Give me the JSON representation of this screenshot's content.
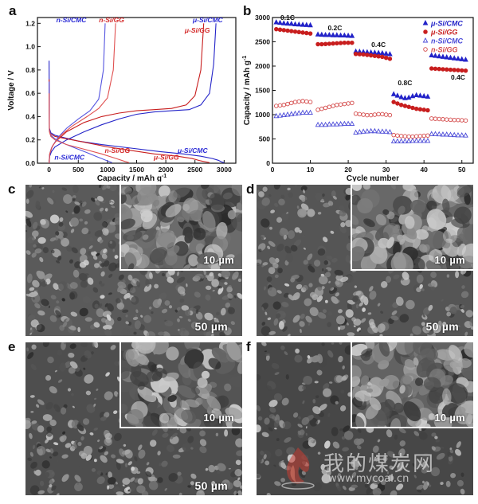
{
  "panels": {
    "a": "a",
    "b": "b",
    "c": "c",
    "d": "d",
    "e": "e",
    "f": "f"
  },
  "chart_data": [
    {
      "type": "line",
      "panel": "a",
      "xlabel": "Capacity / mAh g",
      "xlabel_sup": "-1",
      "ylabel": "Voltage / V",
      "xlim": [
        -200,
        3200
      ],
      "ylim": [
        0,
        1.25
      ],
      "xticks": [
        0,
        500,
        1000,
        1500,
        2000,
        2500,
        3000
      ],
      "yticks": [
        0.0,
        0.2,
        0.4,
        0.6,
        0.8,
        1.0,
        1.2
      ],
      "ytick_labels": [
        "0.0",
        "0.2",
        "0.4",
        "0.6",
        "0.8",
        "1.0",
        "1.2"
      ],
      "annotations": [
        {
          "text": "n-Si/CMC",
          "color": "#2b2bd6",
          "at": [
            380,
            1.23
          ]
        },
        {
          "text": "n-Si/GG",
          "color": "#d42a2a",
          "at": [
            1070,
            1.23
          ]
        },
        {
          "text": "μ-Si/CMC",
          "color": "#2b2bd6",
          "at": [
            2720,
            1.23
          ]
        },
        {
          "text": "μ-Si/GG",
          "color": "#d42a2a",
          "at": [
            2540,
            1.14
          ]
        },
        {
          "text": "n-Si/GG",
          "color": "#d42a2a",
          "at": [
            1170,
            0.11
          ]
        },
        {
          "text": "n-Si/CMC",
          "color": "#2b2bd6",
          "at": [
            350,
            0.05
          ]
        },
        {
          "text": "μ-Si/GG",
          "color": "#d42a2a",
          "at": [
            2010,
            0.05
          ]
        },
        {
          "text": "μ-Si/CMC",
          "color": "#2b2bd6",
          "at": [
            2460,
            0.11
          ]
        }
      ],
      "series": [
        {
          "name": "μ-Si/CMC discharge",
          "color": "#2323c8",
          "x": [
            0,
            5,
            30,
            100,
            250,
            500,
            900,
            1400,
            1900,
            2300,
            2600,
            2800,
            2900,
            2960,
            3000
          ],
          "y": [
            0.88,
            0.3,
            0.26,
            0.24,
            0.22,
            0.19,
            0.16,
            0.13,
            0.1,
            0.08,
            0.06,
            0.04,
            0.025,
            0.01,
            0.005
          ]
        },
        {
          "name": "μ-Si/CMC charge",
          "color": "#2323c8",
          "x": [
            0,
            10,
            40,
            100,
            300,
            600,
            900,
            1200,
            1500,
            1800,
            2100,
            2400,
            2600,
            2750,
            2820,
            2860
          ],
          "y": [
            0.0,
            0.06,
            0.1,
            0.14,
            0.2,
            0.27,
            0.33,
            0.38,
            0.42,
            0.44,
            0.45,
            0.46,
            0.5,
            0.6,
            0.85,
            1.2
          ]
        },
        {
          "name": "μ-Si/GG discharge",
          "color": "#c81e1e",
          "x": [
            0,
            5,
            30,
            100,
            300,
            600,
            1000,
            1400,
            1800,
            2200,
            2450,
            2600,
            2700,
            2750
          ],
          "y": [
            0.72,
            0.28,
            0.25,
            0.23,
            0.21,
            0.18,
            0.14,
            0.11,
            0.08,
            0.06,
            0.04,
            0.02,
            0.01,
            0.005
          ]
        },
        {
          "name": "μ-Si/GG charge",
          "color": "#c81e1e",
          "x": [
            0,
            10,
            40,
            100,
            300,
            600,
            900,
            1200,
            1500,
            1800,
            2100,
            2350,
            2500,
            2600,
            2650
          ],
          "y": [
            0.0,
            0.08,
            0.13,
            0.18,
            0.27,
            0.35,
            0.4,
            0.43,
            0.45,
            0.46,
            0.47,
            0.5,
            0.58,
            0.8,
            1.2
          ]
        },
        {
          "name": "n-Si/CMC discharge",
          "color": "#5555e0",
          "x": [
            0,
            5,
            30,
            100,
            250,
            450,
            650,
            850,
            1000,
            1080
          ],
          "y": [
            0.7,
            0.28,
            0.24,
            0.21,
            0.17,
            0.13,
            0.09,
            0.05,
            0.02,
            0.005
          ]
        },
        {
          "name": "n-Si/CMC charge",
          "color": "#5555e0",
          "x": [
            0,
            10,
            50,
            150,
            300,
            500,
            700,
            850,
            930,
            960
          ],
          "y": [
            0.0,
            0.08,
            0.14,
            0.22,
            0.3,
            0.38,
            0.45,
            0.55,
            0.8,
            1.2
          ]
        },
        {
          "name": "n-Si/GG discharge",
          "color": "#e05050",
          "x": [
            0,
            5,
            30,
            100,
            300,
            600,
            900,
            1150,
            1300,
            1370
          ],
          "y": [
            0.6,
            0.27,
            0.23,
            0.2,
            0.16,
            0.12,
            0.08,
            0.04,
            0.015,
            0.005
          ]
        },
        {
          "name": "n-Si/GG charge",
          "color": "#e05050",
          "x": [
            0,
            10,
            60,
            200,
            400,
            650,
            850,
            1000,
            1100,
            1140
          ],
          "y": [
            0.0,
            0.08,
            0.15,
            0.24,
            0.32,
            0.4,
            0.47,
            0.56,
            0.8,
            1.2
          ]
        }
      ]
    },
    {
      "type": "scatter",
      "panel": "b",
      "xlabel": "Cycle number",
      "ylabel": "Capacity / mAh g",
      "ylabel_sup": "-1",
      "xlim": [
        0,
        53
      ],
      "ylim": [
        0,
        3000
      ],
      "xticks": [
        0,
        10,
        20,
        30,
        40,
        50
      ],
      "yticks": [
        0,
        500,
        1000,
        1500,
        2000,
        2500,
        3000
      ],
      "annotations": [
        {
          "text": "0.1C",
          "at": [
            4,
            2950
          ]
        },
        {
          "text": "0.2C",
          "at": [
            16.5,
            2740
          ]
        },
        {
          "text": "0.4C",
          "at": [
            28,
            2390
          ]
        },
        {
          "text": "0.8C",
          "at": [
            35,
            1610
          ]
        },
        {
          "text": "0.4C",
          "at": [
            49,
            1720
          ]
        }
      ],
      "legend_position": "top-right",
      "series": [
        {
          "name": "μ-Si/CMC",
          "marker": "triangle-filled",
          "color": "#2323c8",
          "x": [
            1,
            2,
            3,
            4,
            5,
            6,
            7,
            8,
            9,
            10,
            12,
            13,
            14,
            15,
            16,
            17,
            18,
            19,
            20,
            21,
            22,
            23,
            24,
            25,
            26,
            27,
            28,
            29,
            30,
            31,
            32,
            33,
            34,
            35,
            36,
            37,
            38,
            39,
            40,
            41,
            42,
            43,
            44,
            45,
            46,
            47,
            48,
            49,
            50,
            51
          ],
          "values": [
            2900,
            2890,
            2880,
            2875,
            2870,
            2860,
            2855,
            2850,
            2845,
            2840,
            2650,
            2645,
            2640,
            2640,
            2635,
            2635,
            2630,
            2630,
            2625,
            2620,
            2300,
            2295,
            2290,
            2285,
            2280,
            2275,
            2270,
            2265,
            2255,
            2245,
            1420,
            1390,
            1360,
            1340,
            1350,
            1380,
            1400,
            1390,
            1380,
            1370,
            2220,
            2210,
            2200,
            2190,
            2180,
            2170,
            2160,
            2150,
            2140,
            2130
          ]
        },
        {
          "name": "μ-Si/GG",
          "marker": "circle-filled",
          "color": "#c81e1e",
          "x": [
            1,
            2,
            3,
            4,
            5,
            6,
            7,
            8,
            9,
            10,
            12,
            13,
            14,
            15,
            16,
            17,
            18,
            19,
            20,
            21,
            22,
            23,
            24,
            25,
            26,
            27,
            28,
            29,
            30,
            31,
            32,
            33,
            34,
            35,
            36,
            37,
            38,
            39,
            40,
            41,
            42,
            43,
            44,
            45,
            46,
            47,
            48,
            49,
            50,
            51
          ],
          "values": [
            2760,
            2750,
            2740,
            2730,
            2720,
            2710,
            2700,
            2690,
            2680,
            2670,
            2450,
            2450,
            2455,
            2460,
            2465,
            2470,
            2475,
            2480,
            2480,
            2480,
            2250,
            2245,
            2240,
            2230,
            2220,
            2210,
            2200,
            2190,
            2170,
            2150,
            1260,
            1230,
            1200,
            1180,
            1160,
            1140,
            1120,
            1110,
            1100,
            1090,
            1950,
            1945,
            1940,
            1935,
            1930,
            1925,
            1920,
            1915,
            1910,
            1905
          ]
        },
        {
          "name": "n-Si/CMC",
          "marker": "triangle-open",
          "color": "#4a4ad8",
          "x": [
            1,
            2,
            3,
            4,
            5,
            6,
            7,
            8,
            9,
            10,
            12,
            13,
            14,
            15,
            16,
            17,
            18,
            19,
            20,
            21,
            22,
            23,
            24,
            25,
            26,
            27,
            28,
            29,
            30,
            31,
            32,
            33,
            34,
            35,
            36,
            37,
            38,
            39,
            40,
            41,
            42,
            43,
            44,
            45,
            46,
            47,
            48,
            49,
            50,
            51
          ],
          "values": [
            970,
            980,
            990,
            1000,
            1010,
            1020,
            1030,
            1040,
            1040,
            1040,
            790,
            790,
            790,
            800,
            800,
            800,
            805,
            810,
            810,
            810,
            630,
            640,
            650,
            655,
            660,
            660,
            655,
            650,
            650,
            640,
            450,
            450,
            450,
            450,
            455,
            460,
            460,
            460,
            460,
            460,
            600,
            600,
            595,
            590,
            590,
            585,
            580,
            575,
            575,
            570
          ]
        },
        {
          "name": "n-Si/GG",
          "marker": "circle-open",
          "color": "#d44a4a",
          "x": [
            1,
            2,
            3,
            4,
            5,
            6,
            7,
            8,
            9,
            10,
            12,
            13,
            14,
            15,
            16,
            17,
            18,
            19,
            20,
            21,
            22,
            23,
            24,
            25,
            26,
            27,
            28,
            29,
            30,
            31,
            32,
            33,
            34,
            35,
            36,
            37,
            38,
            39,
            40,
            41,
            42,
            43,
            44,
            45,
            46,
            47,
            48,
            49,
            50,
            51
          ],
          "values": [
            1180,
            1190,
            1200,
            1220,
            1240,
            1260,
            1270,
            1280,
            1270,
            1260,
            1100,
            1120,
            1140,
            1160,
            1180,
            1200,
            1210,
            1220,
            1230,
            1240,
            1020,
            1010,
            1000,
            990,
            990,
            1000,
            1010,
            1010,
            1000,
            990,
            580,
            570,
            560,
            555,
            550,
            550,
            555,
            560,
            565,
            570,
            920,
            915,
            910,
            905,
            900,
            895,
            890,
            890,
            885,
            880
          ]
        }
      ]
    }
  ],
  "sem": {
    "c": {
      "inset_scale": "10 µm",
      "main_scale": "50 µm"
    },
    "d": {
      "inset_scale": "10 µm",
      "main_scale": "50 µm"
    },
    "e": {
      "inset_scale": "10 µm",
      "main_scale": "50 µm"
    },
    "f": {
      "inset_scale": "10 µm"
    }
  },
  "watermark": {
    "text": "我的煤炭网",
    "url": "www.mycoal.cn"
  }
}
